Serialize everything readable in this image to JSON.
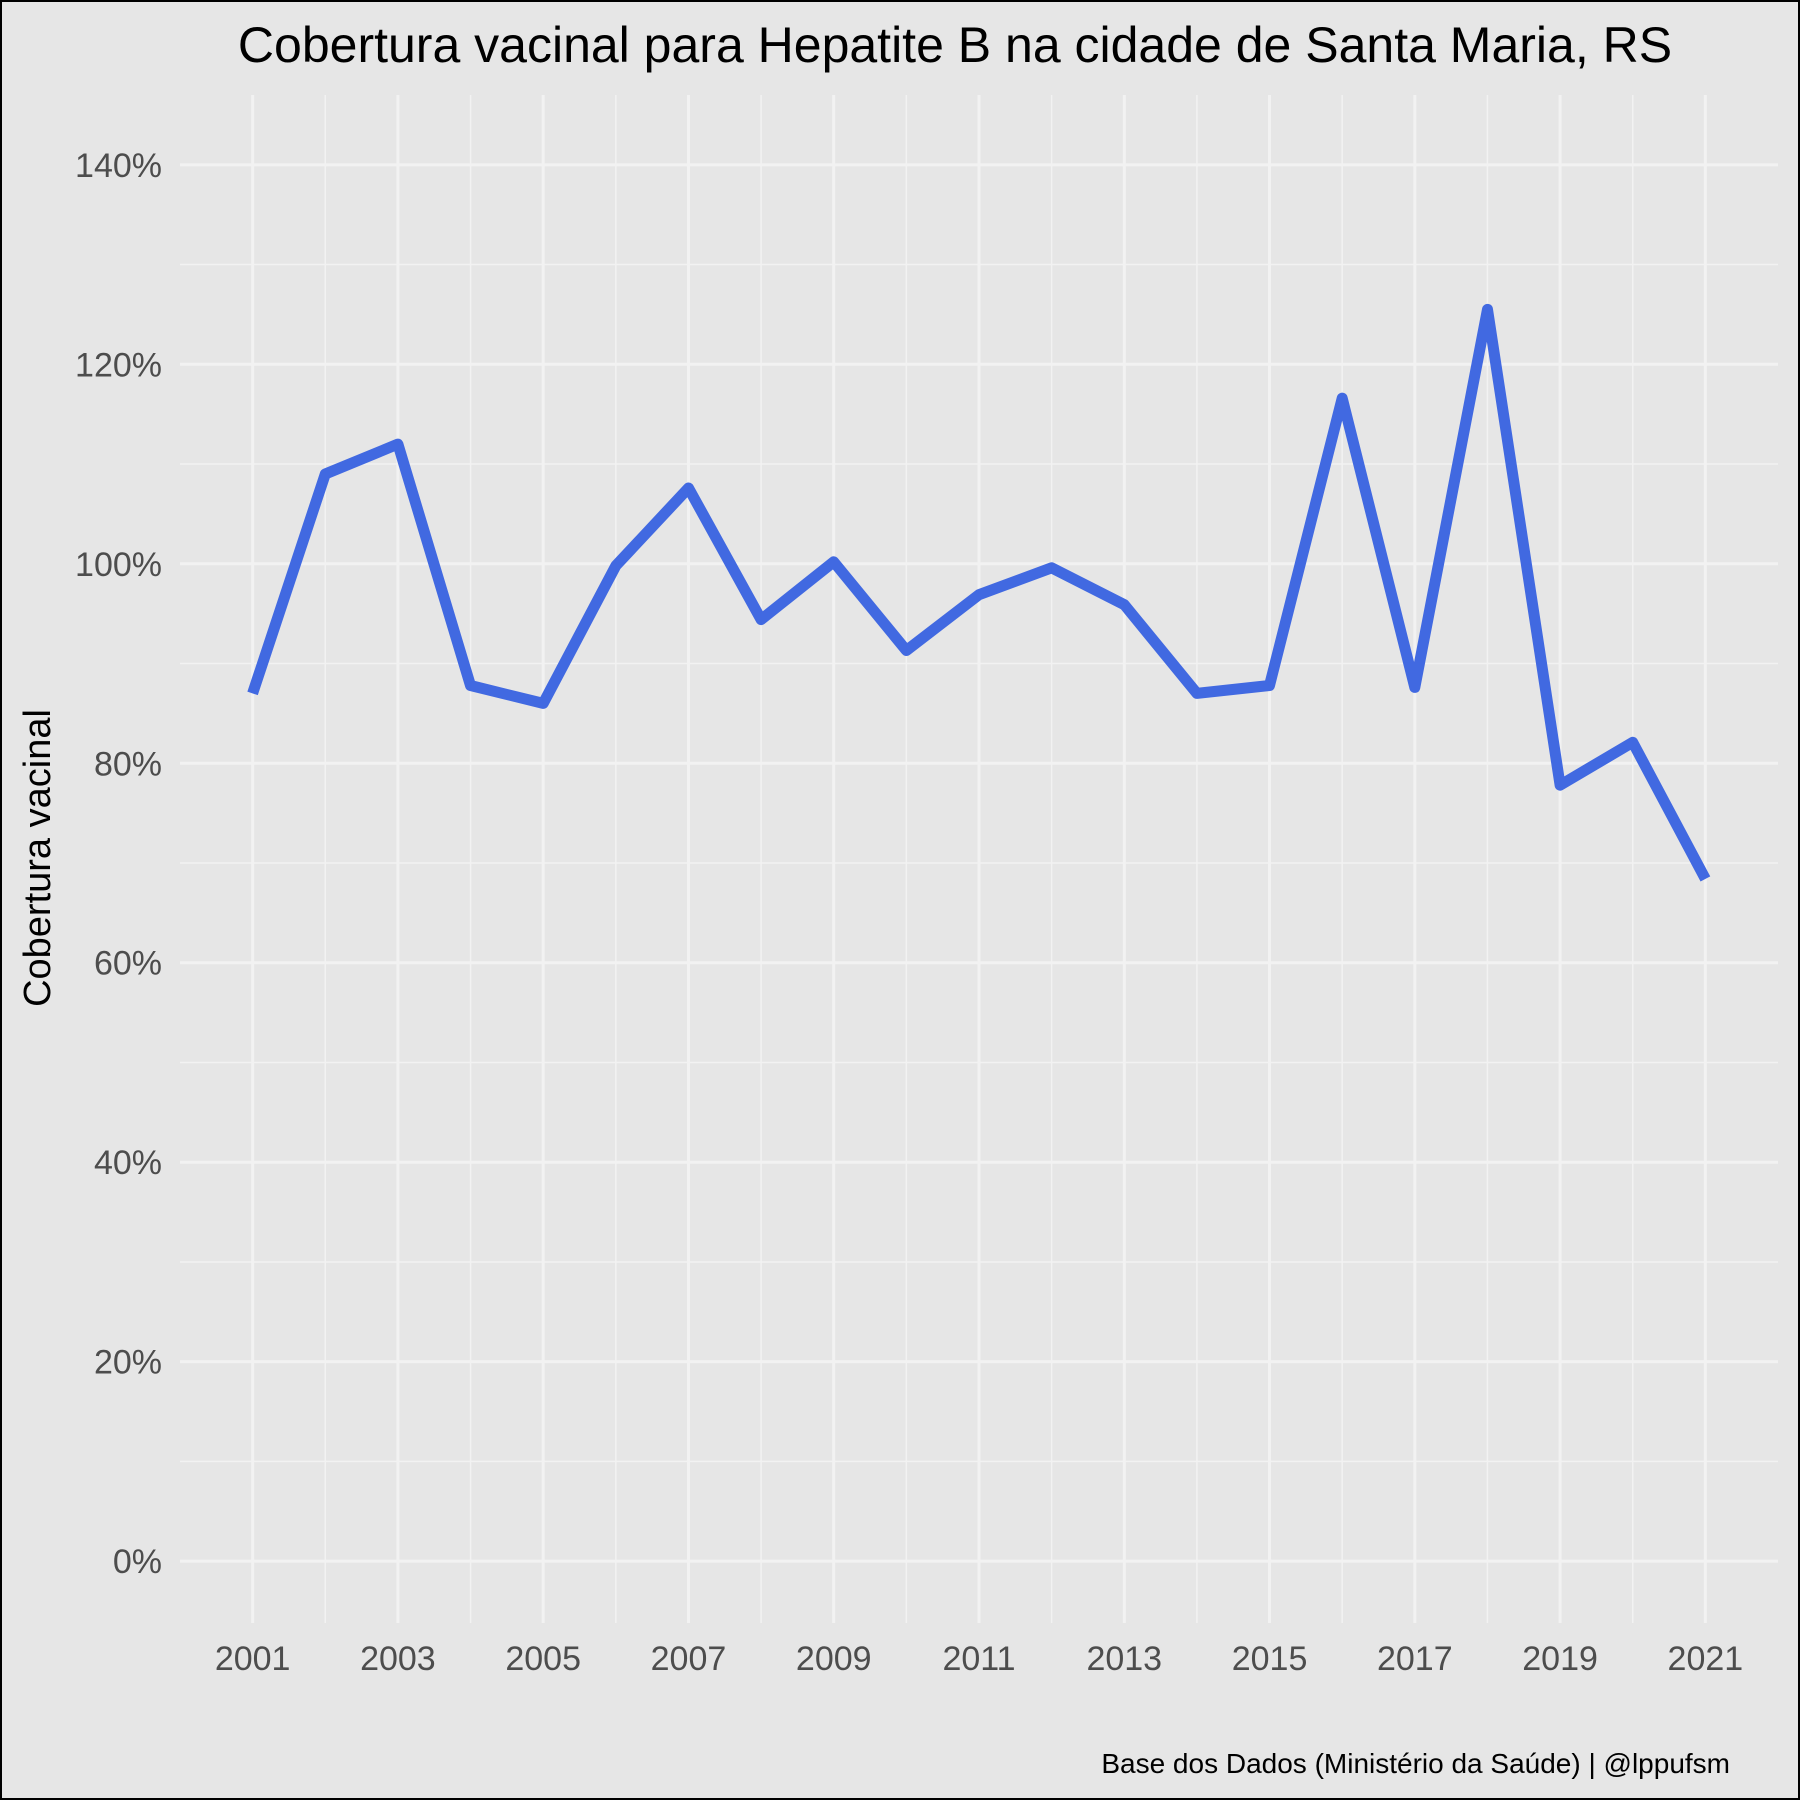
{
  "chart_data": {
    "type": "line",
    "title": "Cobertura vacinal para Hepatite B na cidade de Santa Maria, RS",
    "xlabel": "",
    "ylabel": "Cobertura vacinal",
    "caption": "Base dos Dados (Ministério da Saúde) | @lppufsm",
    "x_ticks": [
      "2001",
      "2003",
      "2005",
      "2007",
      "2009",
      "2011",
      "2013",
      "2015",
      "2017",
      "2019",
      "2021"
    ],
    "y_ticks": [
      "0%",
      "20%",
      "40%",
      "60%",
      "80%",
      "100%",
      "120%",
      "140%"
    ],
    "xlim": [
      2000,
      2022
    ],
    "ylim": [
      -6.2,
      147
    ],
    "grid": true,
    "legend": "none",
    "line_color": "#4169e1",
    "series": [
      {
        "x": [
          2001,
          2002,
          2003,
          2004,
          2005,
          2006,
          2007,
          2008,
          2009,
          2010,
          2011,
          2012,
          2013,
          2014,
          2015,
          2016,
          2017,
          2018,
          2019,
          2020,
          2021
        ],
        "values": [
          87.0,
          109.0,
          112.0,
          87.8,
          86.0,
          99.8,
          107.6,
          94.4,
          100.2,
          91.3,
          96.9,
          99.6,
          95.9,
          87.0,
          87.8,
          116.6,
          87.6,
          125.5,
          77.8,
          82.1,
          68.4
        ]
      }
    ]
  }
}
